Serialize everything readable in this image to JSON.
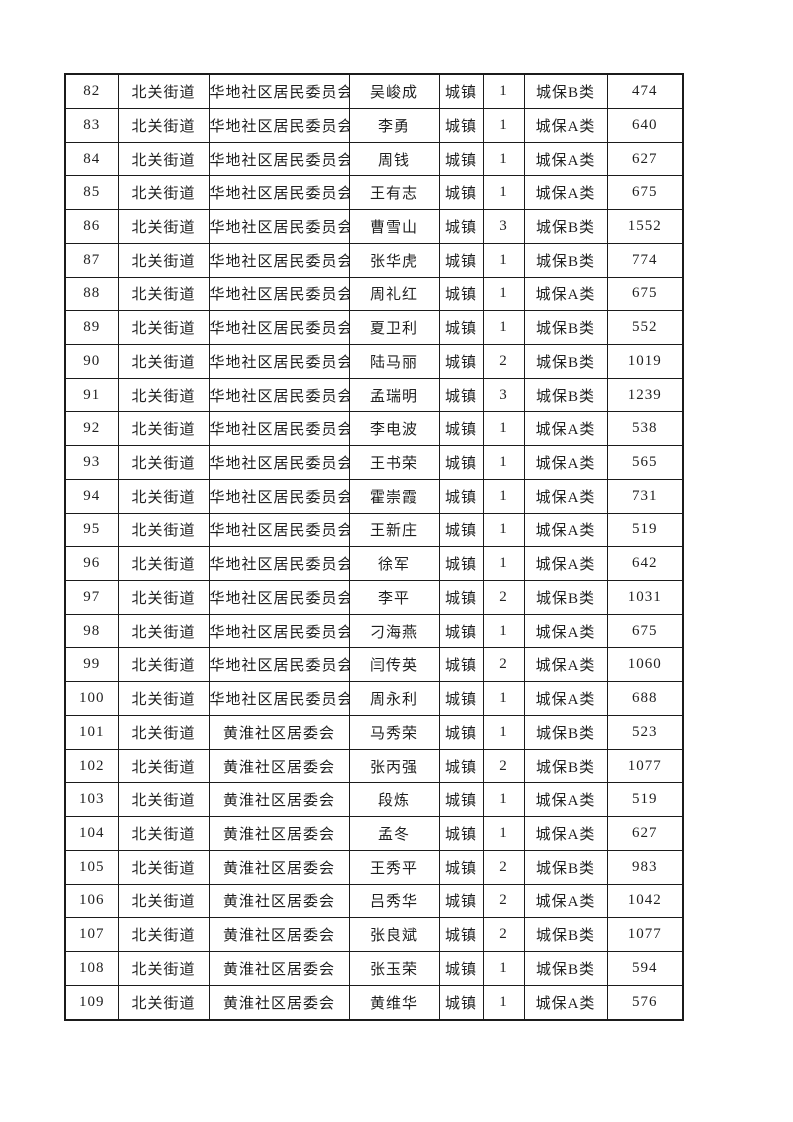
{
  "page": {
    "background_color": "#ffffff",
    "border_color": "#1b1b1b",
    "text_color": "#1f1f1f"
  },
  "table": {
    "column_names": [
      "row-number",
      "street",
      "community",
      "person-name",
      "residence-type",
      "count",
      "category",
      "amount"
    ],
    "rows": [
      [
        "82",
        "北关街道",
        "华地社区居民委员会",
        "吴峻成",
        "城镇",
        "1",
        "城保B类",
        "474"
      ],
      [
        "83",
        "北关街道",
        "华地社区居民委员会",
        "李勇",
        "城镇",
        "1",
        "城保A类",
        "640"
      ],
      [
        "84",
        "北关街道",
        "华地社区居民委员会",
        "周钱",
        "城镇",
        "1",
        "城保A类",
        "627"
      ],
      [
        "85",
        "北关街道",
        "华地社区居民委员会",
        "王有志",
        "城镇",
        "1",
        "城保A类",
        "675"
      ],
      [
        "86",
        "北关街道",
        "华地社区居民委员会",
        "曹雪山",
        "城镇",
        "3",
        "城保B类",
        "1552"
      ],
      [
        "87",
        "北关街道",
        "华地社区居民委员会",
        "张华虎",
        "城镇",
        "1",
        "城保B类",
        "774"
      ],
      [
        "88",
        "北关街道",
        "华地社区居民委员会",
        "周礼红",
        "城镇",
        "1",
        "城保A类",
        "675"
      ],
      [
        "89",
        "北关街道",
        "华地社区居民委员会",
        "夏卫利",
        "城镇",
        "1",
        "城保B类",
        "552"
      ],
      [
        "90",
        "北关街道",
        "华地社区居民委员会",
        "陆马丽",
        "城镇",
        "2",
        "城保B类",
        "1019"
      ],
      [
        "91",
        "北关街道",
        "华地社区居民委员会",
        "孟瑞明",
        "城镇",
        "3",
        "城保B类",
        "1239"
      ],
      [
        "92",
        "北关街道",
        "华地社区居民委员会",
        "李电波",
        "城镇",
        "1",
        "城保A类",
        "538"
      ],
      [
        "93",
        "北关街道",
        "华地社区居民委员会",
        "王书荣",
        "城镇",
        "1",
        "城保A类",
        "565"
      ],
      [
        "94",
        "北关街道",
        "华地社区居民委员会",
        "霍崇霞",
        "城镇",
        "1",
        "城保A类",
        "731"
      ],
      [
        "95",
        "北关街道",
        "华地社区居民委员会",
        "王新庄",
        "城镇",
        "1",
        "城保A类",
        "519"
      ],
      [
        "96",
        "北关街道",
        "华地社区居民委员会",
        "徐军",
        "城镇",
        "1",
        "城保A类",
        "642"
      ],
      [
        "97",
        "北关街道",
        "华地社区居民委员会",
        "李平",
        "城镇",
        "2",
        "城保B类",
        "1031"
      ],
      [
        "98",
        "北关街道",
        "华地社区居民委员会",
        "刁海燕",
        "城镇",
        "1",
        "城保A类",
        "675"
      ],
      [
        "99",
        "北关街道",
        "华地社区居民委员会",
        "闫传英",
        "城镇",
        "2",
        "城保A类",
        "1060"
      ],
      [
        "100",
        "北关街道",
        "华地社区居民委员会",
        "周永利",
        "城镇",
        "1",
        "城保A类",
        "688"
      ],
      [
        "101",
        "北关街道",
        "黄淮社区居委会",
        "马秀荣",
        "城镇",
        "1",
        "城保B类",
        "523"
      ],
      [
        "102",
        "北关街道",
        "黄淮社区居委会",
        "张丙强",
        "城镇",
        "2",
        "城保B类",
        "1077"
      ],
      [
        "103",
        "北关街道",
        "黄淮社区居委会",
        "段炼",
        "城镇",
        "1",
        "城保A类",
        "519"
      ],
      [
        "104",
        "北关街道",
        "黄淮社区居委会",
        "孟冬",
        "城镇",
        "1",
        "城保A类",
        "627"
      ],
      [
        "105",
        "北关街道",
        "黄淮社区居委会",
        "王秀平",
        "城镇",
        "2",
        "城保B类",
        "983"
      ],
      [
        "106",
        "北关街道",
        "黄淮社区居委会",
        "吕秀华",
        "城镇",
        "2",
        "城保A类",
        "1042"
      ],
      [
        "107",
        "北关街道",
        "黄淮社区居委会",
        "张良斌",
        "城镇",
        "2",
        "城保B类",
        "1077"
      ],
      [
        "108",
        "北关街道",
        "黄淮社区居委会",
        "张玉荣",
        "城镇",
        "1",
        "城保B类",
        "594"
      ],
      [
        "109",
        "北关街道",
        "黄淮社区居委会",
        "黄维华",
        "城镇",
        "1",
        "城保A类",
        "576"
      ]
    ]
  }
}
